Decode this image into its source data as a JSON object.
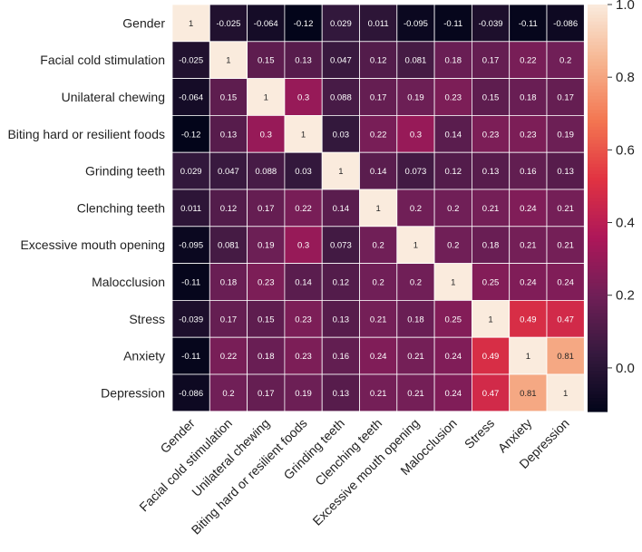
{
  "chart_data": {
    "type": "heatmap",
    "title": "",
    "variables": [
      "Gender",
      "Facial cold stimulation",
      "Unilateral chewing",
      "Biting hard or resilient foods",
      "Grinding teeth",
      "Clenching teeth",
      "Excessive mouth opening",
      "Malocclusion",
      "Stress",
      "Anxiety",
      "Depression"
    ],
    "values": [
      [
        1,
        -0.025,
        -0.064,
        -0.12,
        0.029,
        0.011,
        -0.095,
        -0.11,
        -0.039,
        -0.11,
        -0.086
      ],
      [
        -0.025,
        1,
        0.15,
        0.13,
        0.047,
        0.12,
        0.081,
        0.18,
        0.17,
        0.22,
        0.2
      ],
      [
        -0.064,
        0.15,
        1,
        0.3,
        0.088,
        0.17,
        0.19,
        0.23,
        0.15,
        0.18,
        0.17
      ],
      [
        -0.12,
        0.13,
        0.3,
        1,
        0.03,
        0.22,
        0.3,
        0.14,
        0.23,
        0.23,
        0.19
      ],
      [
        0.029,
        0.047,
        0.088,
        0.03,
        1,
        0.14,
        0.073,
        0.12,
        0.13,
        0.16,
        0.13
      ],
      [
        0.011,
        0.12,
        0.17,
        0.22,
        0.14,
        1,
        0.2,
        0.2,
        0.21,
        0.24,
        0.21
      ],
      [
        -0.095,
        0.081,
        0.19,
        0.3,
        0.073,
        0.2,
        1,
        0.2,
        0.18,
        0.21,
        0.21
      ],
      [
        -0.11,
        0.18,
        0.23,
        0.14,
        0.12,
        0.2,
        0.2,
        1,
        0.25,
        0.24,
        0.24
      ],
      [
        -0.039,
        0.17,
        0.15,
        0.23,
        0.13,
        0.21,
        0.18,
        0.25,
        1,
        0.49,
        0.47
      ],
      [
        -0.11,
        0.22,
        0.18,
        0.23,
        0.16,
        0.24,
        0.21,
        0.24,
        0.49,
        1,
        0.81
      ],
      [
        -0.086,
        0.2,
        0.17,
        0.19,
        0.13,
        0.21,
        0.21,
        0.24,
        0.47,
        0.81,
        1
      ]
    ],
    "colorbar": {
      "range": [
        -0.12,
        1.0
      ],
      "ticks": [
        0.0,
        0.2,
        0.4,
        0.6,
        0.8,
        1.0
      ],
      "tick_labels": [
        "0.0",
        "0.2",
        "0.4",
        "0.6",
        "0.8",
        "1.0"
      ]
    },
    "colormap": [
      "#03051a",
      "#36193e",
      "#701f57",
      "#ae1759",
      "#e13342",
      "#f37651",
      "#f6b48f",
      "#faebdd"
    ],
    "annotated": true
  }
}
